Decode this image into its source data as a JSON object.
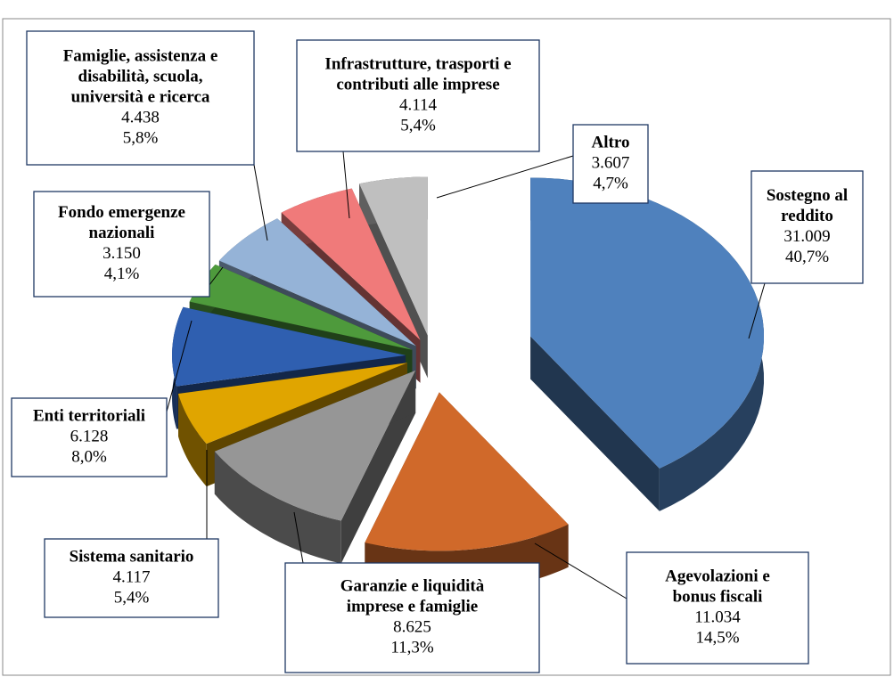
{
  "chart_data": {
    "type": "pie3d",
    "categories": [
      [
        "Sostegno al",
        "reddito"
      ],
      [
        "Agevolazioni e",
        "bonus fiscali"
      ],
      [
        "Garanzie e liquidità",
        "imprese e famiglie"
      ],
      [
        "Sistema sanitario"
      ],
      [
        "Enti territoriali"
      ],
      [
        "Fondo emergenze",
        "nazionali"
      ],
      [
        "Famiglie, assistenza e",
        "disabilità, scuola,",
        "università e ricerca"
      ],
      [
        "Infrastrutture, trasporti e",
        "contributi alle imprese"
      ],
      [
        "Altro"
      ]
    ],
    "values": [
      31009,
      11034,
      8625,
      4117,
      6128,
      3150,
      4438,
      4114,
      3607
    ],
    "value_labels": [
      "31.009",
      "11.034",
      "8.625",
      "4.117",
      "6.128",
      "3.150",
      "4.438",
      "4.114",
      "3.607"
    ],
    "percents": [
      40.7,
      14.5,
      11.3,
      5.4,
      8.0,
      4.1,
      5.8,
      5.4,
      4.7
    ],
    "percent_labels": [
      "40,7%",
      "14,5%",
      "11,3%",
      "5,4%",
      "8,0%",
      "4,1%",
      "5,8%",
      "5,4%",
      "4,7%"
    ],
    "colors": [
      "#4f81bd",
      "#d0692a",
      "#969696",
      "#e0a500",
      "#2f5fb0",
      "#4e9a3c",
      "#95b3d7",
      "#f07a7a",
      "#bfbfbf"
    ]
  }
}
